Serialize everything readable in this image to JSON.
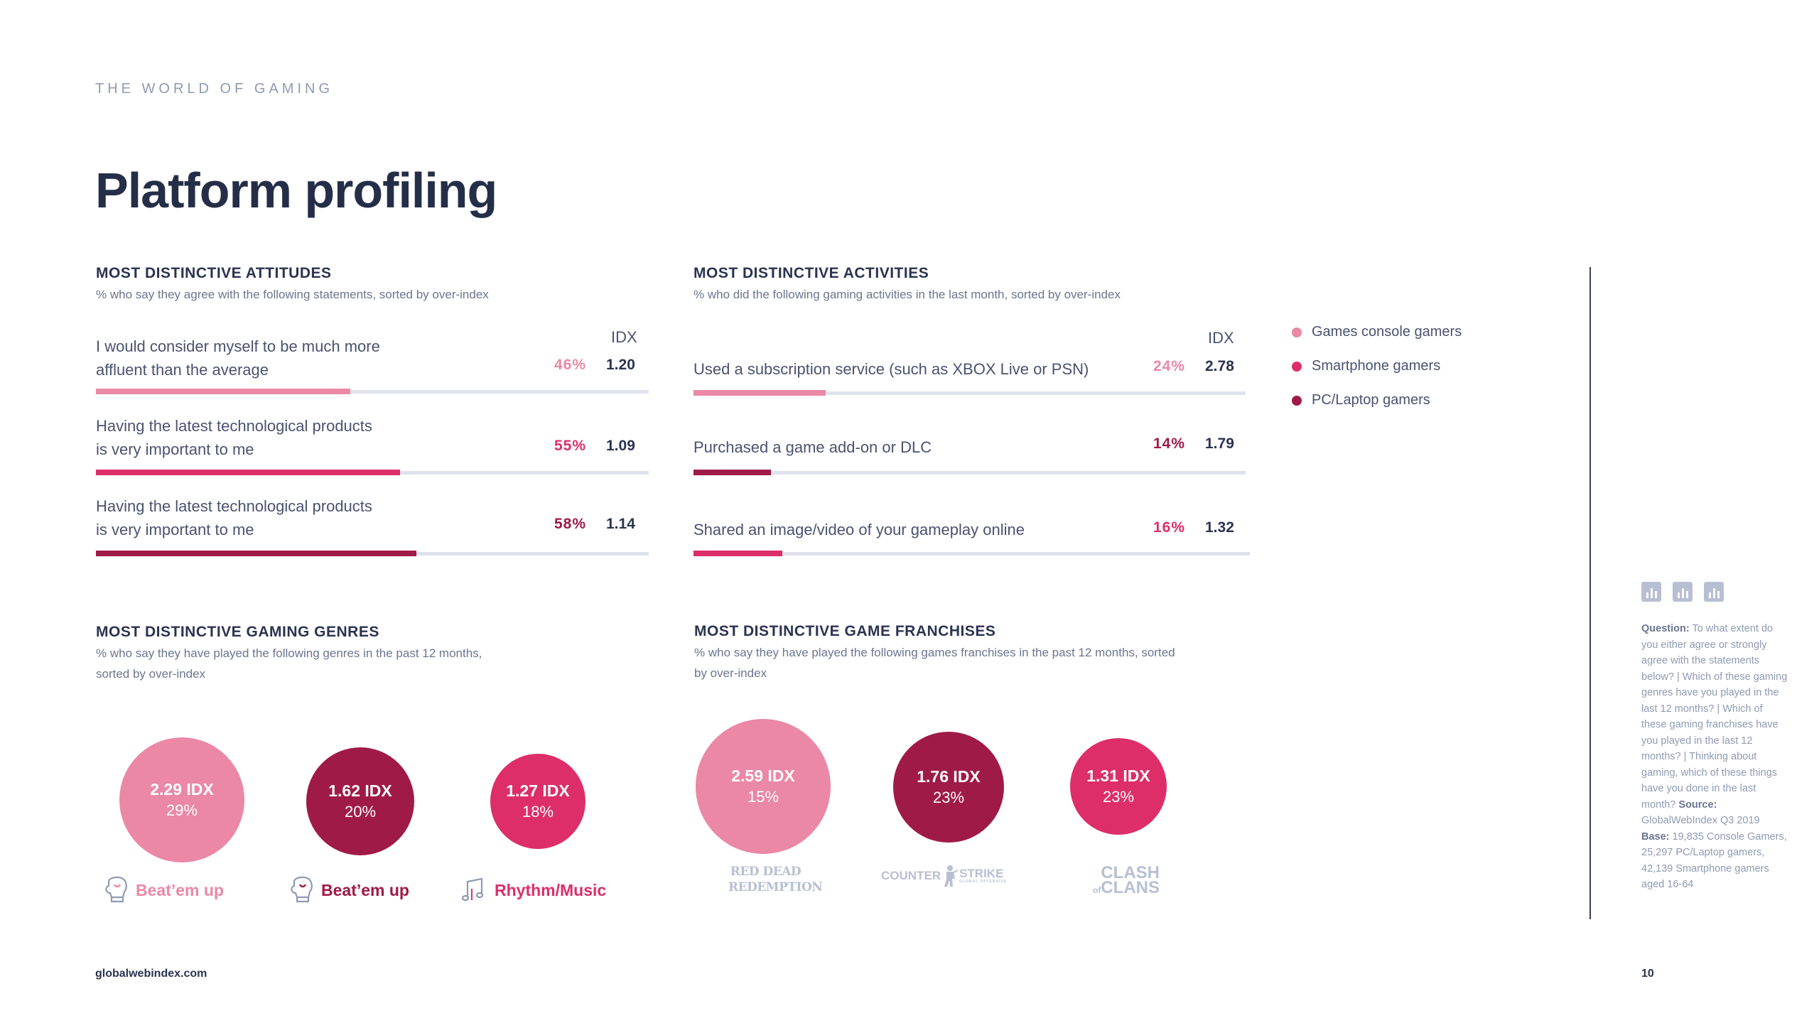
{
  "header": {
    "eyebrow": "THE WORLD OF GAMING",
    "title": "Platform profiling"
  },
  "colors": {
    "console": "#ea88a5",
    "smartphone": "#dd2e6a",
    "pc": "#a01a47",
    "track": "#dfe2ec"
  },
  "attitudes": {
    "title": "MOST DISTINCTIVE ATTITUDES",
    "subtitle": "% who say they agree with the following statements, sorted by over-index",
    "idx_header": "IDX",
    "rows": [
      {
        "line1": "I would consider myself to be much more",
        "line2": "affluent than the average",
        "pct": "46%",
        "pct_value": 46,
        "idx": "1.20",
        "platform": "console"
      },
      {
        "line1": "Having the latest technological products",
        "line2": "is very important to me",
        "pct": "55%",
        "pct_value": 55,
        "idx": "1.09",
        "platform": "smartphone"
      },
      {
        "line1": "Having the latest technological products",
        "line2": "is very important to me",
        "pct": "58%",
        "pct_value": 58,
        "idx": "1.14",
        "platform": "pc"
      }
    ]
  },
  "activities": {
    "title": "MOST DISTINCTIVE ACTIVITIES",
    "subtitle": "% who did the following gaming activities in the last month, sorted by over-index",
    "idx_header": "IDX",
    "rows": [
      {
        "label": "Used a subscription service (such as XBOX Live or PSN)",
        "pct": "24%",
        "pct_value": 24,
        "idx": "2.78",
        "platform": "console"
      },
      {
        "label": "Purchased a game add-on or DLC",
        "pct": "14%",
        "pct_value": 14,
        "idx": "1.79",
        "platform": "pc"
      },
      {
        "label": "Shared an image/video of your gameplay online",
        "pct": "16%",
        "pct_value": 16,
        "idx": "1.32",
        "platform": "smartphone"
      }
    ]
  },
  "legend": {
    "items": [
      "Games console gamers",
      "Smartphone gamers",
      "PC/Laptop gamers"
    ]
  },
  "genres": {
    "title": "MOST DISTINCTIVE GAMING GENRES",
    "subtitle_line1": "% who say they have played the following genres in the past 12 months,",
    "subtitle_line2": "sorted by over-index",
    "items": [
      {
        "idx": "2.29 IDX",
        "pct": "29%",
        "label": "Beat’em up",
        "platform": "console",
        "icon": "boxing-glove-icon"
      },
      {
        "idx": "1.62 IDX",
        "pct": "20%",
        "label": "Beat’em up",
        "platform": "pc",
        "icon": "boxing-glove-icon"
      },
      {
        "idx": "1.27 IDX",
        "pct": "18%",
        "label": "Rhythm/Music",
        "platform": "smartphone",
        "icon": "music-notes-icon"
      }
    ]
  },
  "franchises": {
    "title": "MOST DISTINCTIVE GAME FRANCHISES",
    "subtitle_line1": "% who say they have played the following games franchises in the past 12 months, sorted",
    "subtitle_line2": "by over-index",
    "items": [
      {
        "idx": "2.59 IDX",
        "pct": "15%",
        "logo_line1": "RED DEAD",
        "logo_line2": "REDEMPTION",
        "platform": "console"
      },
      {
        "idx": "1.76 IDX",
        "pct": "23%",
        "logo_line1": "COUNTER",
        "logo_line2": "STRIKE",
        "logo_small": "GLOBAL OFFENSIVE",
        "platform": "pc"
      },
      {
        "idx": "1.31 IDX",
        "pct": "23%",
        "logo_line1": "CLASH",
        "logo_line2": "CLANS",
        "logo_of": "of",
        "platform": "smartphone"
      }
    ]
  },
  "notes": {
    "question_label": "Question:",
    "question_text": "To what extent do you either agree or strongly agree with the statements below? | Which of these gaming genres have you played in the last 12 months? | Which of these gaming franchises have you played in the last 12 months? | Thinking about gaming, which of these things have you done in the last month?",
    "source_label": "Source:",
    "source_text": "GlobalWebIndex Q3 2019",
    "base_label": "Base:",
    "base_text": "19,835 Console Gamers, 25,297 PC/Laptop gamers, 42,139 Smartphone gamers aged 16-64"
  },
  "footer": {
    "site": "globalwebindex.com",
    "page": "10"
  }
}
